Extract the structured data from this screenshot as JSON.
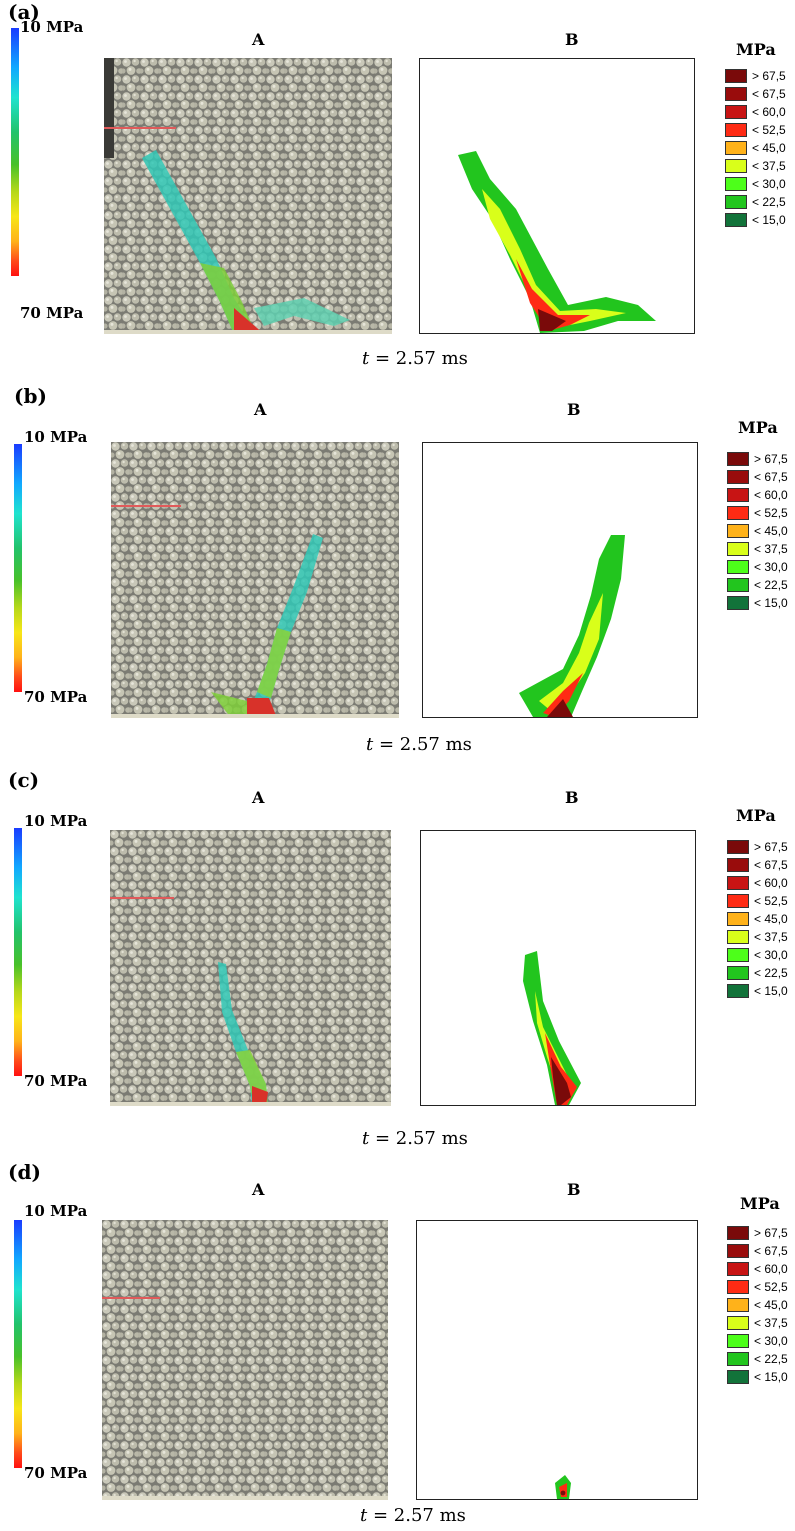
{
  "panels": [
    {
      "label": "(a)",
      "time_var": "t",
      "time_eq": "= 2.57 ms"
    },
    {
      "label": "(b)",
      "time_var": "t",
      "time_eq": "= 2.57 ms"
    },
    {
      "label": "(c)",
      "time_var": "t",
      "time_eq": "= 2.57 ms"
    },
    {
      "label": "(d)",
      "time_var": "t",
      "time_eq": "= 2.57 ms"
    }
  ],
  "subplot_titles": {
    "a": "A",
    "b": "B"
  },
  "colorbar": {
    "top_label": "10 MPa",
    "bottom_label": "70 MPa"
  },
  "legend": {
    "unit": "MPa",
    "items": [
      {
        "label": "> 67,5",
        "color": "#7a0a0a"
      },
      {
        "label": "< 67,5",
        "color": "#990c0c"
      },
      {
        "label": "< 60,0",
        "color": "#c81414"
      },
      {
        "label": "< 52,5",
        "color": "#ff2b14"
      },
      {
        "label": "< 45,0",
        "color": "#ffb21a"
      },
      {
        "label": "< 37,5",
        "color": "#d9ff1a"
      },
      {
        "label": "< 30,0",
        "color": "#4dff1a"
      },
      {
        "label": "< 22,5",
        "color": "#22c51e"
      },
      {
        "label": "< 15,0",
        "color": "#12733a"
      }
    ]
  }
}
